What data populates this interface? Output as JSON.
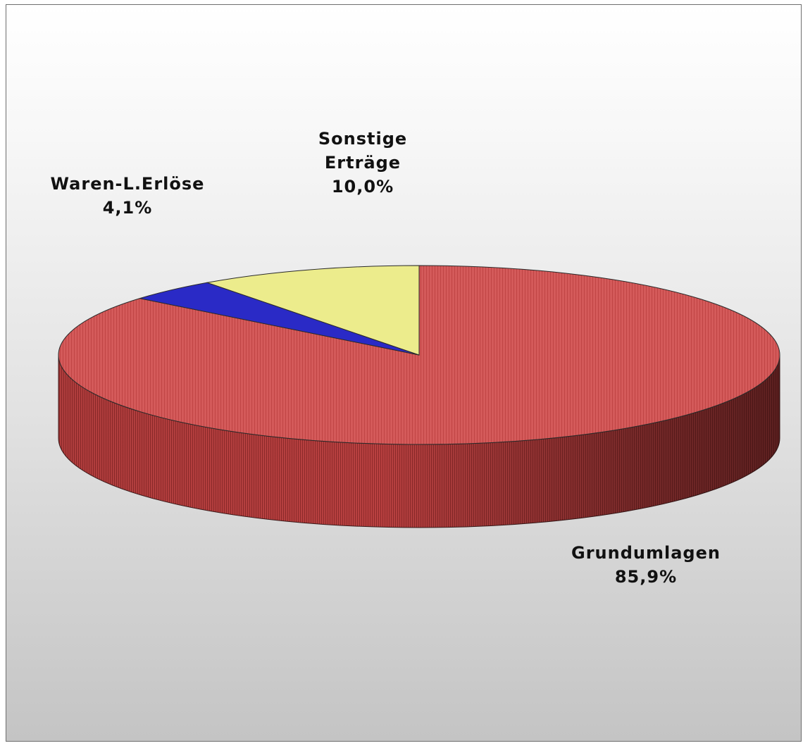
{
  "chart_data": {
    "type": "pie",
    "style": "3d",
    "legend": "none",
    "categories": [
      "Grundumlagen",
      "Waren-L.Erlöse",
      "Sonstige Erträge"
    ],
    "values": [
      85.9,
      4.1,
      10.0
    ],
    "unit": "%",
    "colors": [
      "#d25454",
      "#2a2ac6",
      "#ecec8c"
    ],
    "labels": [
      {
        "name_lines": [
          "Grundumlagen"
        ],
        "pct": "85,9%"
      },
      {
        "name_lines": [
          "Waren-L.Erlöse"
        ],
        "pct": "4,1%"
      },
      {
        "name_lines": [
          "Sonstige",
          "Erträge"
        ],
        "pct": "10,0%"
      }
    ]
  }
}
